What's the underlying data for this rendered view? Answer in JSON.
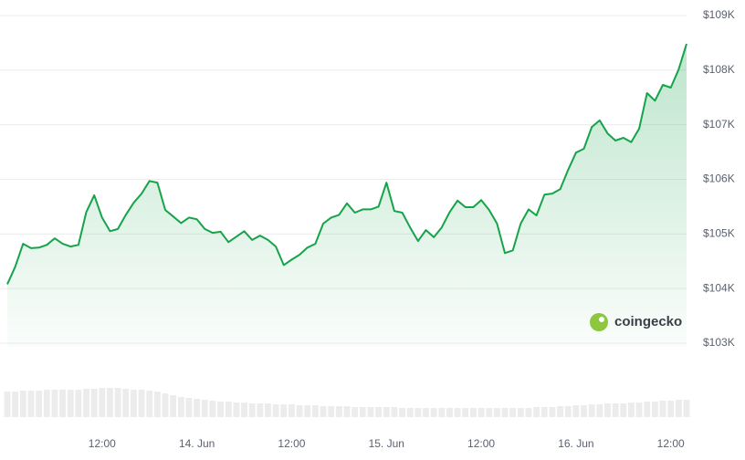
{
  "chart_data": {
    "type": "line",
    "x": [
      0,
      1,
      2,
      3,
      4,
      5,
      6,
      7,
      8,
      9,
      10,
      11,
      12,
      13,
      14,
      15,
      16,
      17,
      18,
      19,
      20,
      21,
      22,
      23,
      24,
      25,
      26,
      27,
      28,
      29,
      30,
      31,
      32,
      33,
      34,
      35,
      36,
      37,
      38,
      39,
      40,
      41,
      42,
      43,
      44,
      45,
      46,
      47,
      48,
      49,
      50,
      51,
      52,
      53,
      54,
      55,
      56,
      57,
      58,
      59,
      60,
      61,
      62,
      63,
      64,
      65,
      66,
      67,
      68,
      69,
      70,
      71,
      72,
      73,
      74,
      75,
      76,
      77,
      78,
      79,
      80,
      81,
      82,
      83,
      84,
      85,
      86
    ],
    "xlim": [
      0,
      86
    ],
    "xticks": [
      {
        "value": 12,
        "label": "12:00"
      },
      {
        "value": 24,
        "label": "14. Jun"
      },
      {
        "value": 36,
        "label": "12:00"
      },
      {
        "value": 48,
        "label": "15. Jun"
      },
      {
        "value": 60,
        "label": "12:00"
      },
      {
        "value": 72,
        "label": "16. Jun"
      },
      {
        "value": 84,
        "label": "12:00"
      }
    ],
    "ylim": [
      103000,
      109000
    ],
    "yticks": [
      {
        "value": 103000,
        "label": "$103K"
      },
      {
        "value": 104000,
        "label": "$104K"
      },
      {
        "value": 105000,
        "label": "$105K"
      },
      {
        "value": 106000,
        "label": "$106K"
      },
      {
        "value": 107000,
        "label": "$107K"
      },
      {
        "value": 108000,
        "label": "$108K"
      },
      {
        "value": 109000,
        "label": "$109K"
      }
    ],
    "y2lim": [
      0,
      40
    ],
    "grid": true,
    "watermark": "coingecko",
    "series": [
      {
        "color": "#16a34a",
        "values": [
          104080,
          104400,
          104820,
          104740,
          104750,
          104800,
          104920,
          104820,
          104770,
          104800,
          105400,
          105710,
          105300,
          105050,
          105090,
          105350,
          105570,
          105740,
          105970,
          105940,
          105440,
          105320,
          105200,
          105300,
          105270,
          105090,
          105020,
          105040,
          104850,
          104950,
          105050,
          104890,
          104970,
          104890,
          104770,
          104430,
          104530,
          104620,
          104750,
          104820,
          105190,
          105300,
          105350,
          105560,
          105390,
          105450,
          105450,
          105500,
          105940,
          105420,
          105390,
          105120,
          104870,
          105070,
          104940,
          105120,
          105400,
          105610,
          105490,
          105490,
          105620,
          105440,
          105190,
          104650,
          104700,
          105190,
          105450,
          105340,
          105720,
          105740,
          105820,
          106170,
          106490,
          106560,
          106960,
          107080,
          106840,
          106710,
          106760,
          106680,
          106930,
          107580,
          107440,
          107730,
          107680,
          108010,
          108480
        ]
      },
      {
        "type": "bar",
        "axis": "y2",
        "color": "#ececec",
        "values": [
          28,
          28,
          29,
          29,
          29,
          30,
          30,
          30,
          30,
          30,
          31,
          31,
          32,
          32,
          32,
          31,
          30,
          30,
          29,
          28,
          26,
          24,
          22,
          21,
          20,
          19,
          18,
          17,
          17,
          16,
          16,
          15,
          15,
          15,
          14,
          14,
          14,
          13,
          13,
          13,
          12,
          12,
          12,
          12,
          11,
          11,
          11,
          11,
          11,
          11,
          10,
          10,
          10,
          10,
          10,
          10,
          10,
          10,
          10,
          10,
          10,
          10,
          10,
          10,
          10,
          10,
          10,
          11,
          11,
          11,
          12,
          12,
          13,
          13,
          14,
          14,
          15,
          15,
          15,
          16,
          16,
          17,
          17,
          18,
          18,
          19,
          19
        ]
      }
    ]
  }
}
